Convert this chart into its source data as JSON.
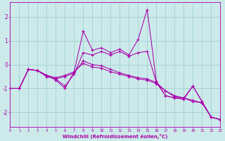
{
  "xlabel": "Windchill (Refroidissement éolien,°C)",
  "bg_color": "#cceaea",
  "line_color": "#aa00aa",
  "grid_color": "#99cccc",
  "x_ticks": [
    0,
    1,
    2,
    3,
    4,
    5,
    6,
    7,
    8,
    9,
    10,
    11,
    12,
    13,
    14,
    15,
    16,
    17,
    18,
    19,
    20,
    21,
    22,
    23
  ],
  "y_ticks": [
    -2,
    -1,
    0,
    1,
    2
  ],
  "xlim": [
    0,
    23
  ],
  "ylim": [
    -2.6,
    2.6
  ],
  "series": [
    {
      "x": [
        0,
        1,
        2,
        3,
        4,
        5,
        6,
        7,
        8,
        9,
        10,
        11,
        12,
        13,
        14,
        15,
        16,
        17,
        18,
        19,
        20,
        21,
        22,
        23
      ],
      "y": [
        -1.0,
        -1.0,
        -0.2,
        -0.25,
        -0.45,
        -0.65,
        -1.0,
        -0.3,
        1.4,
        0.6,
        0.7,
        0.5,
        0.65,
        0.4,
        1.05,
        2.3,
        -0.7,
        -1.3,
        -1.4,
        -1.45,
        -0.9,
        -1.55,
        -2.2,
        -2.3
      ]
    },
    {
      "x": [
        0,
        1,
        2,
        3,
        4,
        5,
        6,
        7,
        8,
        9,
        10,
        11,
        12,
        13,
        14,
        15,
        16,
        17,
        18,
        19,
        20,
        21,
        22,
        23
      ],
      "y": [
        -1.0,
        -1.0,
        -0.2,
        -0.25,
        -0.5,
        -0.6,
        -0.5,
        -0.35,
        0.15,
        0.0,
        -0.05,
        -0.2,
        -0.35,
        -0.45,
        -0.55,
        -0.6,
        -0.75,
        -1.1,
        -1.3,
        -1.4,
        -1.5,
        -1.6,
        -2.2,
        -2.3
      ]
    },
    {
      "x": [
        0,
        1,
        2,
        3,
        4,
        5,
        6,
        7,
        8,
        9,
        10,
        11,
        12,
        13,
        14,
        15,
        16,
        17,
        18,
        19,
        20,
        21,
        22,
        23
      ],
      "y": [
        -1.0,
        -1.0,
        -0.2,
        -0.25,
        -0.45,
        -0.55,
        -0.45,
        -0.3,
        0.05,
        -0.1,
        -0.15,
        -0.3,
        -0.4,
        -0.5,
        -0.6,
        -0.65,
        -0.8,
        -1.1,
        -1.35,
        -1.4,
        -1.55,
        -1.6,
        -2.2,
        -2.3
      ]
    },
    {
      "x": [
        0,
        1,
        2,
        3,
        4,
        5,
        6,
        7,
        8,
        9,
        10,
        11,
        12,
        13,
        14,
        15,
        16,
        17,
        18,
        19,
        20,
        21,
        22,
        23
      ],
      "y": [
        -1.0,
        -1.0,
        -0.2,
        -0.25,
        -0.5,
        -0.6,
        -0.9,
        -0.4,
        0.5,
        0.4,
        0.55,
        0.4,
        0.55,
        0.35,
        0.5,
        0.55,
        -0.75,
        -1.3,
        -1.4,
        -1.4,
        -0.9,
        -1.55,
        -2.2,
        -2.3
      ]
    }
  ]
}
